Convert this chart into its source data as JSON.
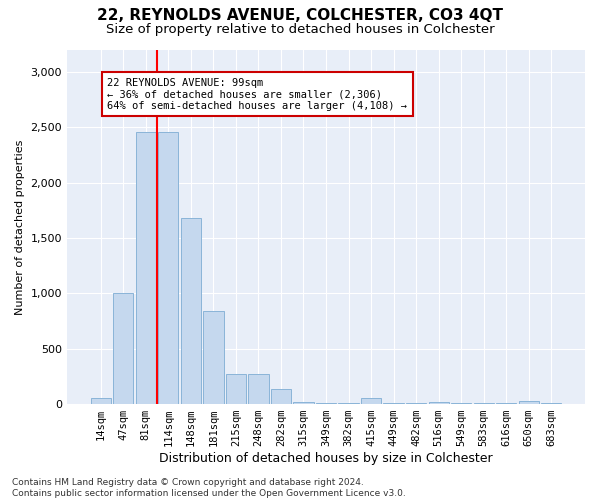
{
  "title": "22, REYNOLDS AVENUE, COLCHESTER, CO3 4QT",
  "subtitle": "Size of property relative to detached houses in Colchester",
  "xlabel": "Distribution of detached houses by size in Colchester",
  "ylabel": "Number of detached properties",
  "categories": [
    "14sqm",
    "47sqm",
    "81sqm",
    "114sqm",
    "148sqm",
    "181sqm",
    "215sqm",
    "248sqm",
    "282sqm",
    "315sqm",
    "349sqm",
    "382sqm",
    "415sqm",
    "449sqm",
    "482sqm",
    "516sqm",
    "549sqm",
    "583sqm",
    "616sqm",
    "650sqm",
    "683sqm"
  ],
  "values": [
    55,
    1000,
    2460,
    2460,
    1680,
    840,
    270,
    270,
    140,
    20,
    10,
    10,
    55,
    10,
    10,
    20,
    10,
    10,
    10,
    30,
    10
  ],
  "bar_color": "#c5d8ee",
  "bar_edgecolor": "#8ab4d8",
  "vline_color": "red",
  "annotation_text": "22 REYNOLDS AVENUE: 99sqm\n← 36% of detached houses are smaller (2,306)\n64% of semi-detached houses are larger (4,108) →",
  "annotation_box_color": "white",
  "annotation_box_edgecolor": "#cc0000",
  "ylim": [
    0,
    3200
  ],
  "yticks": [
    0,
    500,
    1000,
    1500,
    2000,
    2500,
    3000
  ],
  "background_color": "#e8eef8",
  "footer": "Contains HM Land Registry data © Crown copyright and database right 2024.\nContains public sector information licensed under the Open Government Licence v3.0.",
  "title_fontsize": 11,
  "subtitle_fontsize": 9.5,
  "xlabel_fontsize": 9,
  "ylabel_fontsize": 8,
  "footer_fontsize": 6.5,
  "tick_fontsize": 7.5,
  "ytick_fontsize": 8
}
